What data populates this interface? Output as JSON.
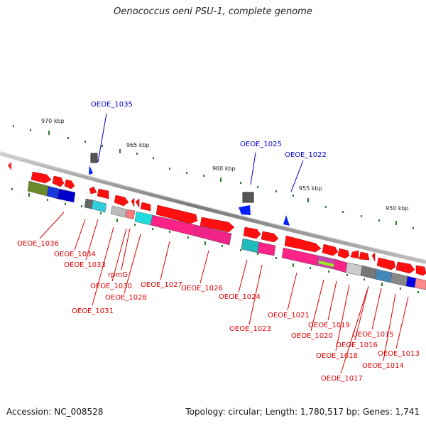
{
  "title": "Oenococcus oeni PSU-1, complete genome",
  "accession": "Accession: NC_008528",
  "info": "Topology: circular; Length: 1,780,517 bp; Genes: 1,741",
  "scale_ticks": [
    "970 kbp",
    "965 kbp",
    "960 kbp",
    "955 kbp",
    "950 kbp"
  ],
  "genes_red": [
    "OEOE_1036",
    "OEOE_1034",
    "OEOE_1033",
    "rpmG",
    "OEOE_1030",
    "OEOE_1031",
    "OEOE_1028",
    "OEOE_1027",
    "OEOE_1026",
    "OEOE_1024",
    "OEOE_1023",
    "OEOE_1021",
    "OEOE_1020",
    "OEOE_1019",
    "OEOE_1018",
    "OEOE_1017",
    "OEOE_1016",
    "OEOE_1015",
    "OEOE_1014",
    "OEOE_1013"
  ],
  "genes_blue": [
    "OEOE_1035",
    "OEOE_1025",
    "OEOE_1022"
  ],
  "colors": {
    "forward": "#ff0000",
    "reverse": "#0000cc",
    "backbone": "#808080",
    "tick": "#006600"
  }
}
